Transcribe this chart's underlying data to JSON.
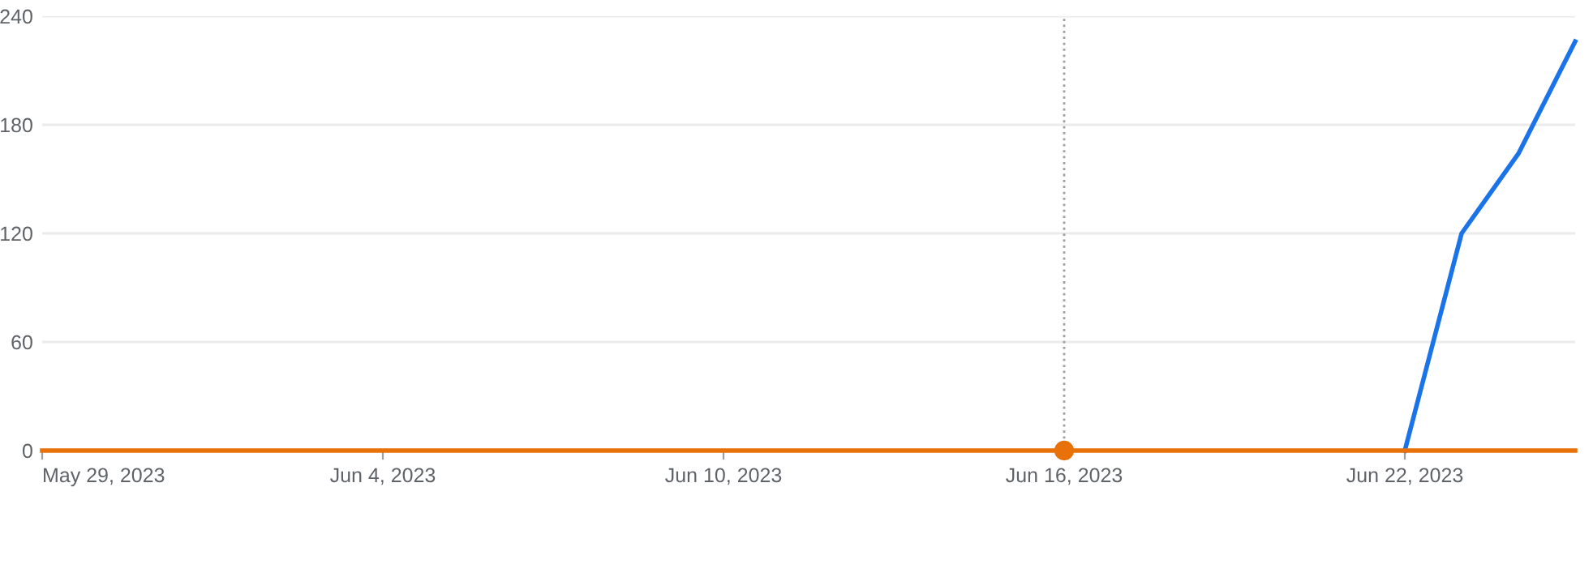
{
  "chart_data": {
    "type": "line",
    "x": [
      "2023-05-29",
      "2023-05-30",
      "2023-05-31",
      "2023-06-01",
      "2023-06-02",
      "2023-06-03",
      "2023-06-04",
      "2023-06-05",
      "2023-06-06",
      "2023-06-07",
      "2023-06-08",
      "2023-06-09",
      "2023-06-10",
      "2023-06-11",
      "2023-06-12",
      "2023-06-13",
      "2023-06-14",
      "2023-06-15",
      "2023-06-16",
      "2023-06-17",
      "2023-06-18",
      "2023-06-19",
      "2023-06-20",
      "2023-06-21",
      "2023-06-22",
      "2023-06-23",
      "2023-06-24",
      "2023-06-25"
    ],
    "series": [
      {
        "color": "#1a73e8",
        "values": [
          null,
          null,
          null,
          null,
          null,
          null,
          null,
          null,
          null,
          null,
          null,
          null,
          null,
          null,
          null,
          null,
          null,
          null,
          null,
          null,
          null,
          null,
          null,
          null,
          0,
          120,
          164,
          226
        ]
      },
      {
        "color": "#e8710a",
        "values": [
          0,
          0,
          0,
          0,
          0,
          0,
          0,
          0,
          0,
          0,
          0,
          0,
          0,
          0,
          0,
          0,
          0,
          0,
          0,
          0,
          0,
          0,
          0,
          0,
          0,
          0,
          0,
          0
        ]
      },
      {
        "type": "scatter",
        "color": "#e8710a",
        "x": [
          "2023-06-16"
        ],
        "values": [
          0
        ],
        "marker": "circle"
      }
    ],
    "xlim": [
      "2023-05-29",
      "2023-06-25"
    ],
    "xticks": [
      {
        "value": "2023-05-29",
        "label": "May 29, 2023"
      },
      {
        "value": "2023-06-04",
        "label": "Jun 4, 2023"
      },
      {
        "value": "2023-06-10",
        "label": "Jun 10, 2023"
      },
      {
        "value": "2023-06-16",
        "label": "Jun 16, 2023"
      },
      {
        "value": "2023-06-22",
        "label": "Jun 22, 2023"
      }
    ],
    "ylim": [
      0,
      240
    ],
    "yticks": [
      0,
      60,
      120,
      180,
      240
    ],
    "ref_lines": [
      {
        "axis": "x",
        "value": "2023-06-16",
        "label": null,
        "color": "#9e9e9e",
        "line_style": "dotted"
      }
    ],
    "grid": "y",
    "marker": "none",
    "line_style": "solid",
    "legend": false
  }
}
